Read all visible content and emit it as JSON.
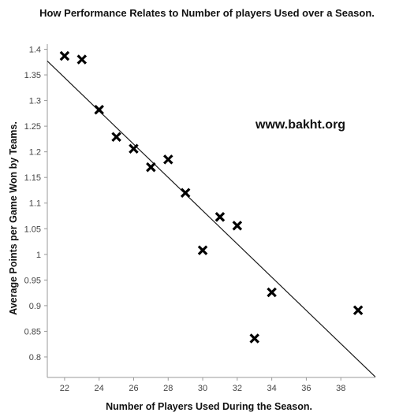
{
  "chart_data": {
    "type": "scatter",
    "title": "How Performance Relates to Number of players Used over a Season.",
    "xlabel": "Number of Players Used During the Season.",
    "ylabel": "Average Points per Game Won by Teams.",
    "watermark": "www.bakht.org",
    "xlim": [
      21,
      40
    ],
    "ylim": [
      0.76,
      1.41
    ],
    "xticks": [
      22,
      24,
      26,
      28,
      30,
      32,
      34,
      36,
      38
    ],
    "xtick_labels": [
      "22",
      "24",
      "26",
      "28",
      "30",
      "32",
      "34",
      "36",
      "38"
    ],
    "yticks": [
      0.8,
      0.85,
      0.9,
      0.95,
      1.0,
      1.05,
      1.1,
      1.15,
      1.2,
      1.25,
      1.3,
      1.35,
      1.4
    ],
    "ytick_labels": [
      "0.8",
      "0.85",
      "0.9",
      "0.95",
      "1",
      "1.05",
      "1.1",
      "1.15",
      "1.2",
      "1.25",
      "1.3",
      "1.35",
      "1.4"
    ],
    "grid": false,
    "series": [
      {
        "marker": "x",
        "color": "#000000",
        "points": [
          {
            "x": 22,
            "y": 1.387
          },
          {
            "x": 23,
            "y": 1.38
          },
          {
            "x": 24,
            "y": 1.282
          },
          {
            "x": 25,
            "y": 1.229
          },
          {
            "x": 26,
            "y": 1.206
          },
          {
            "x": 27,
            "y": 1.17
          },
          {
            "x": 28,
            "y": 1.185
          },
          {
            "x": 29,
            "y": 1.12
          },
          {
            "x": 30,
            "y": 1.008
          },
          {
            "x": 31,
            "y": 1.073
          },
          {
            "x": 32,
            "y": 1.056
          },
          {
            "x": 33,
            "y": 0.836
          },
          {
            "x": 34,
            "y": 0.926
          },
          {
            "x": 39,
            "y": 0.891
          }
        ]
      }
    ],
    "trendline": {
      "x": [
        21,
        40
      ],
      "y": [
        1.377,
        0.761
      ]
    }
  }
}
